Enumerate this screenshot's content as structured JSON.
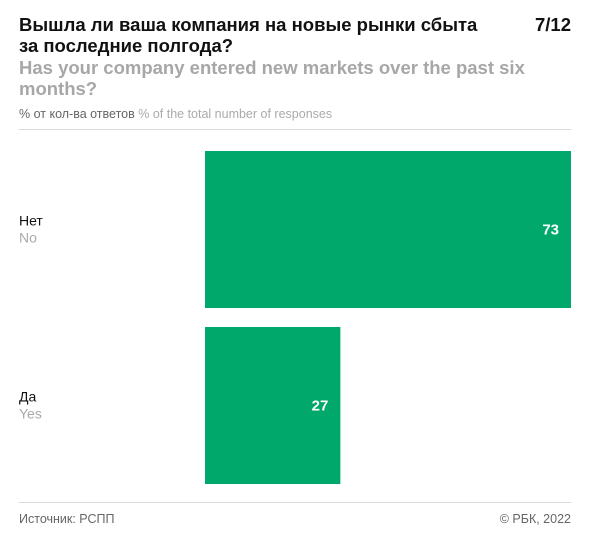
{
  "header": {
    "title_ru": "Вышла ли ваша компания на новые рынки сбыта за последние полгода?",
    "title_en": "Has your company entered new markets over the past six months?",
    "page_counter": "7/12",
    "units_ru": "% от кол-ва ответов",
    "units_en": "% of the total number of responses"
  },
  "chart_data": {
    "type": "bar",
    "orientation": "horizontal",
    "categories": [
      {
        "label_ru": "Нет",
        "label_en": "No"
      },
      {
        "label_ru": "Да",
        "label_en": "Yes"
      }
    ],
    "values": [
      73,
      27
    ],
    "value_labels": [
      "73",
      "27"
    ],
    "xlim": [
      0,
      73
    ],
    "bar_color": "#00a96b",
    "grid": false,
    "legend": "none"
  },
  "footer": {
    "source": "Источник: РСПП",
    "copyright": "© РБК, 2022"
  }
}
